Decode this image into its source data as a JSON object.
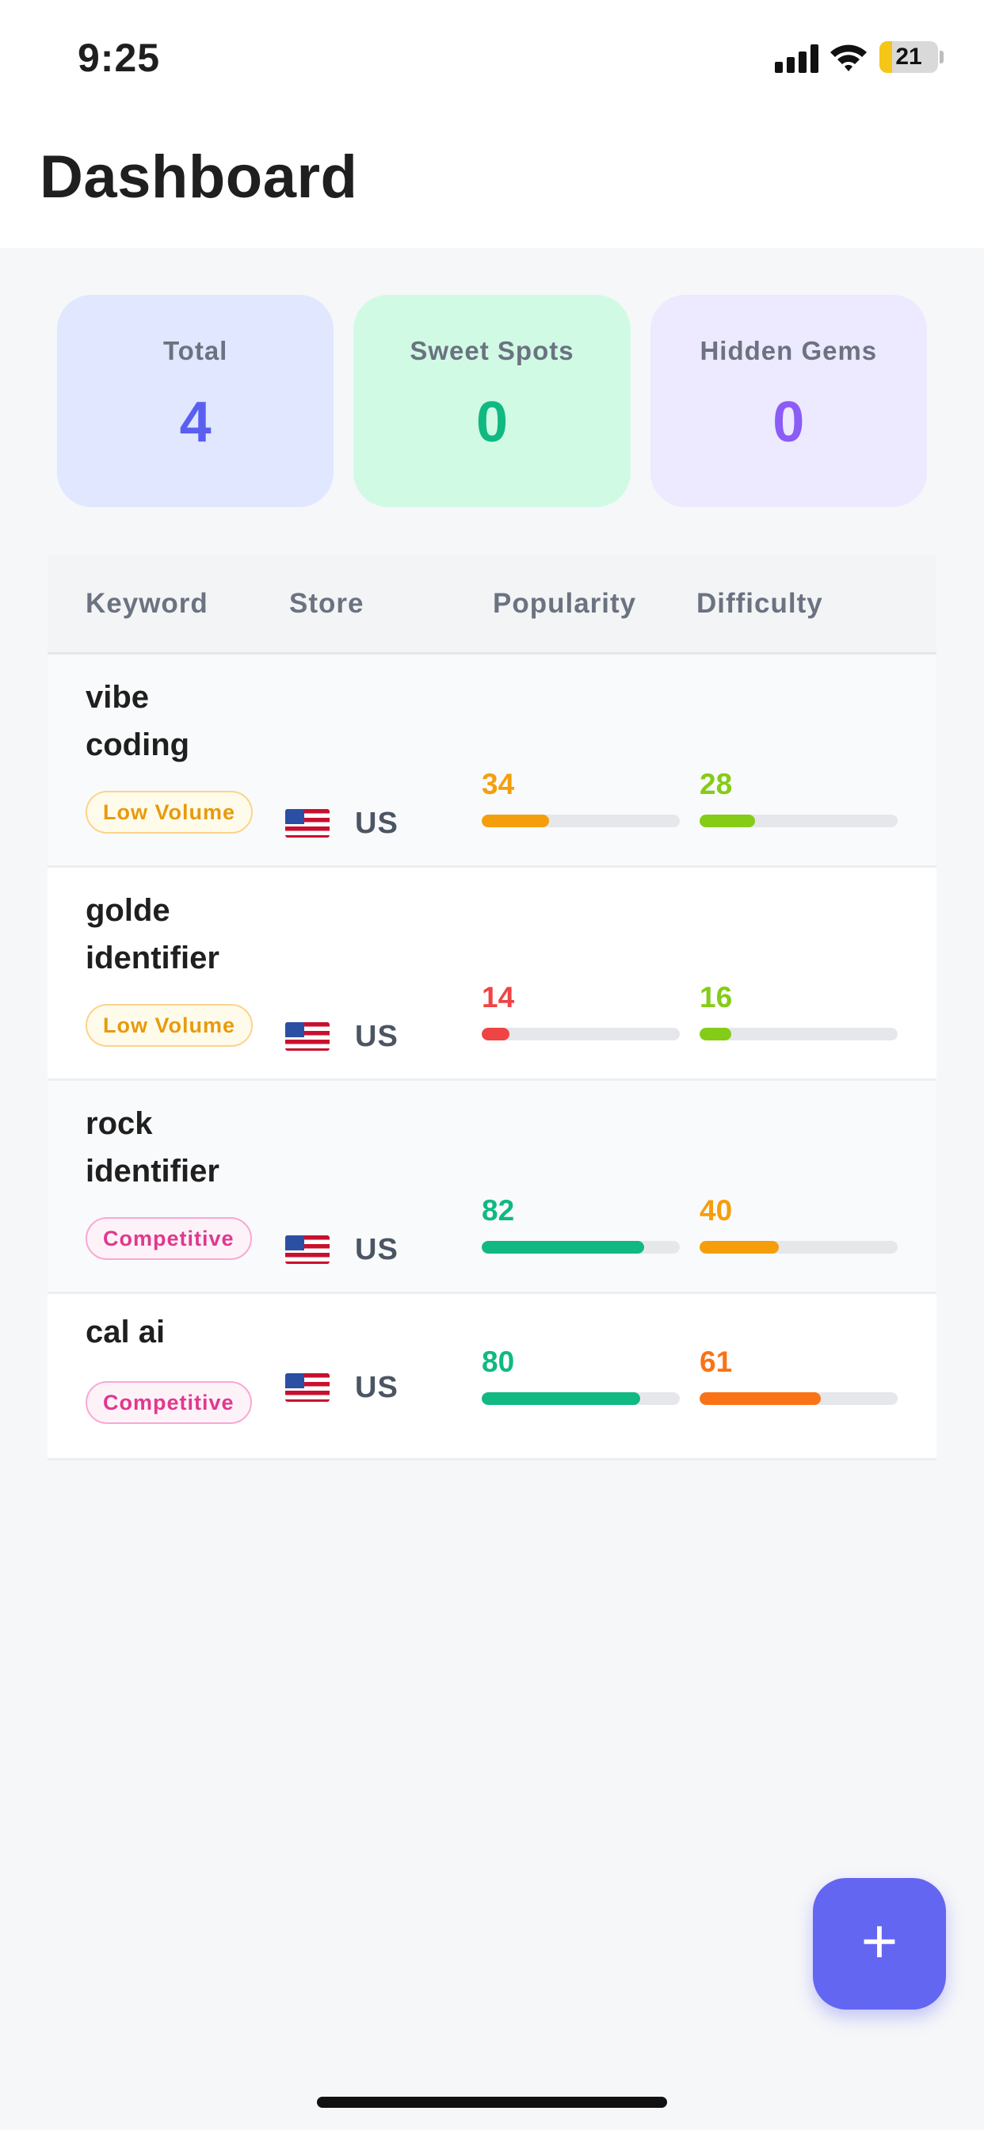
{
  "status_bar": {
    "time": "9:25",
    "battery": "21"
  },
  "header": {
    "title": "Dashboard"
  },
  "stats": [
    {
      "label": "Total",
      "value": "4",
      "color": "#5b5ff0"
    },
    {
      "label": "Sweet Spots",
      "value": "0",
      "color": "#10b981"
    },
    {
      "label": "Hidden Gems",
      "value": "0",
      "color": "#8b5cf6"
    }
  ],
  "table": {
    "headers": {
      "keyword": "Keyword",
      "store": "Store",
      "popularity": "Popularity",
      "difficulty": "Difficulty"
    },
    "rows": [
      {
        "keyword_lines": [
          "vibe",
          "coding"
        ],
        "badge": "Low Volume",
        "badge_type": "low",
        "store": "US",
        "flag_icon": "us-flag-icon",
        "popularity": 34,
        "popularity_color": "#f59e0b",
        "difficulty": 28,
        "difficulty_color": "#84cc16"
      },
      {
        "keyword_lines": [
          "golde",
          "identifier"
        ],
        "badge": "Low Volume",
        "badge_type": "low",
        "store": "US",
        "flag_icon": "us-flag-icon",
        "popularity": 14,
        "popularity_color": "#ef4444",
        "difficulty": 16,
        "difficulty_color": "#84cc16"
      },
      {
        "keyword_lines": [
          "rock",
          "identifier"
        ],
        "badge": "Competitive",
        "badge_type": "comp",
        "store": "US",
        "flag_icon": "us-flag-icon",
        "popularity": 82,
        "popularity_color": "#10b981",
        "difficulty": 40,
        "difficulty_color": "#f59e0b"
      },
      {
        "keyword_lines": [
          "cal ai"
        ],
        "badge": "Competitive",
        "badge_type": "comp",
        "store": "US",
        "flag_icon": "us-flag-icon",
        "popularity": 80,
        "popularity_color": "#10b981",
        "difficulty": 61,
        "difficulty_color": "#f97316"
      }
    ]
  },
  "fab": {
    "label": "+",
    "icon": "plus-icon",
    "color": "#6366f1"
  }
}
